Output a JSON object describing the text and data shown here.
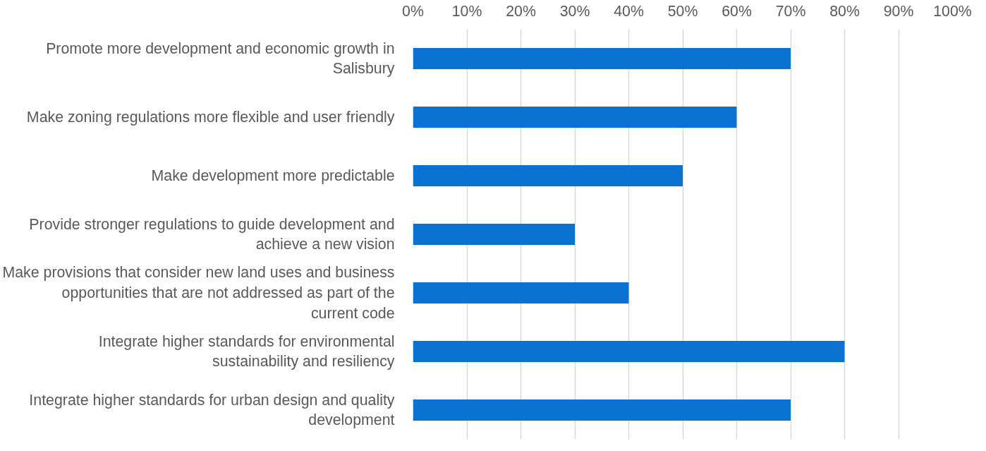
{
  "chart_data": {
    "type": "bar",
    "orientation": "horizontal",
    "categories": [
      "Promote more development and economic growth in Salisbury",
      "Make zoning regulations more flexible and user friendly",
      "Make development more predictable",
      "Provide stronger regulations to guide development and achieve a new vision",
      "Make provisions that consider new land uses and business opportunities that are not addressed as part of the current code",
      "Integrate higher standards for environmental sustainability and resiliency",
      "Integrate higher standards for urban design and quality development"
    ],
    "values": [
      70,
      60,
      50,
      30,
      40,
      80,
      70
    ],
    "color": "#0a73d2",
    "xlim": [
      0,
      100
    ],
    "xticks": [
      {
        "value": 0,
        "label": "0%"
      },
      {
        "value": 10,
        "label": "10%"
      },
      {
        "value": 20,
        "label": "20%"
      },
      {
        "value": 30,
        "label": "30%"
      },
      {
        "value": 40,
        "label": "40%"
      },
      {
        "value": 50,
        "label": "50%"
      },
      {
        "value": 60,
        "label": "60%"
      },
      {
        "value": 70,
        "label": "70%"
      },
      {
        "value": 80,
        "label": "80%"
      },
      {
        "value": 90,
        "label": "90%"
      },
      {
        "value": 100,
        "label": "100%"
      }
    ],
    "grid": "x"
  }
}
